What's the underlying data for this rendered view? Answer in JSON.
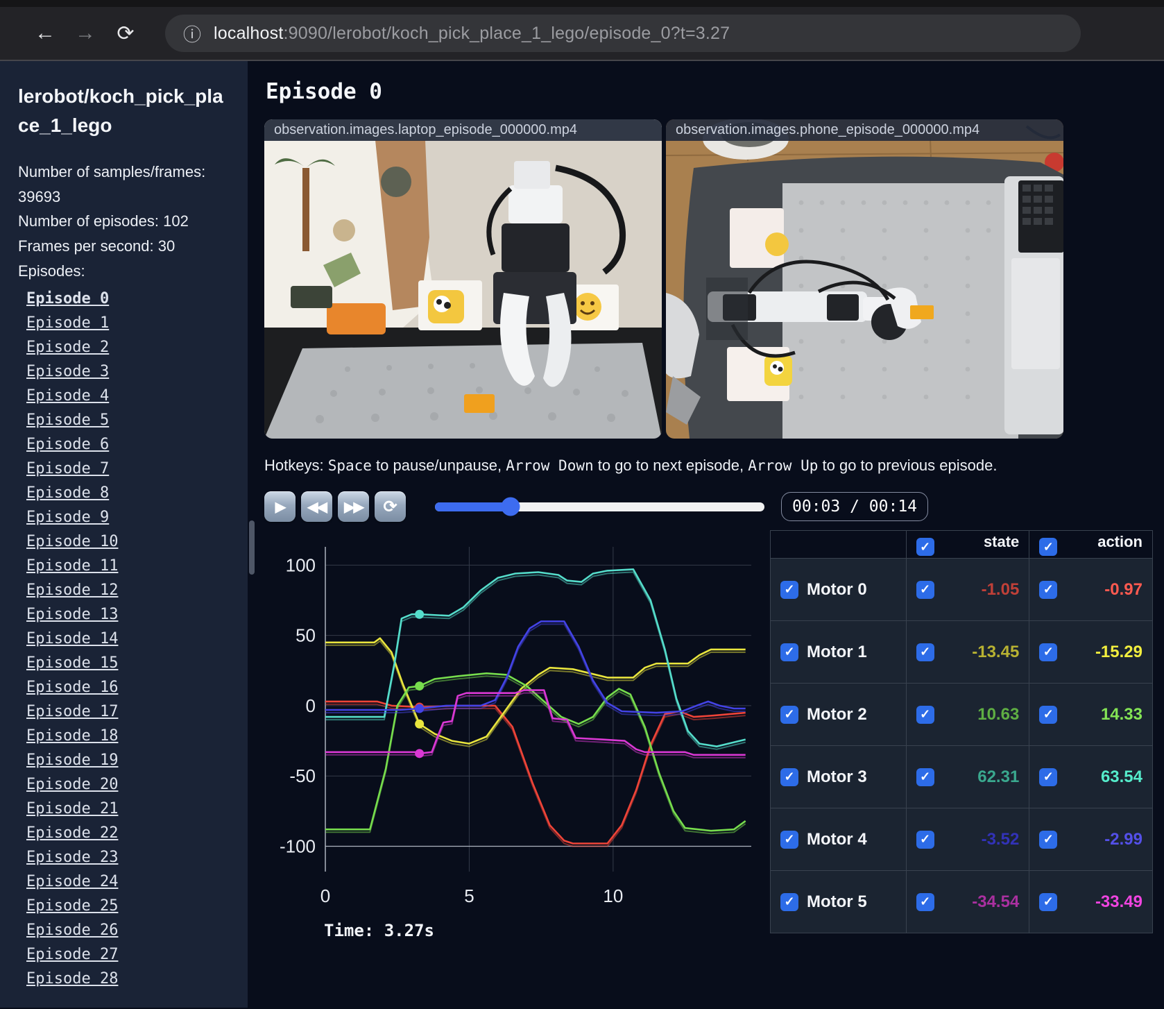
{
  "browser": {
    "back_icon": "←",
    "forward_icon": "→",
    "reload_icon": "⟳",
    "info_icon": "ⓘ",
    "url_host": "localhost",
    "url_rest": ":9090/lerobot/koch_pick_place_1_lego/episode_0?t=3.27"
  },
  "sidebar": {
    "title": "lerobot/koch_pick_place_1_lego",
    "meta_line1": "Number of samples/frames: 39693",
    "meta_line2": "Number of episodes: 102",
    "meta_line3": "Frames per second: 30",
    "episodes_label": "Episodes:",
    "active_episode": "Episode 0",
    "episodes": [
      "Episode 0",
      "Episode 1",
      "Episode 2",
      "Episode 3",
      "Episode 4",
      "Episode 5",
      "Episode 6",
      "Episode 7",
      "Episode 8",
      "Episode 9",
      "Episode 10",
      "Episode 11",
      "Episode 12",
      "Episode 13",
      "Episode 14",
      "Episode 15",
      "Episode 16",
      "Episode 17",
      "Episode 18",
      "Episode 19",
      "Episode 20",
      "Episode 21",
      "Episode 22",
      "Episode 23",
      "Episode 24",
      "Episode 25",
      "Episode 26",
      "Episode 27",
      "Episode 28"
    ]
  },
  "main": {
    "heading": "Episode 0",
    "videos": [
      {
        "title": "observation.images.laptop_episode_000000.mp4"
      },
      {
        "title": "observation.images.phone_episode_000000.mp4"
      }
    ],
    "hotkeys": {
      "prefix": "Hotkeys: ",
      "key1": "Space",
      "mid1": " to pause/unpause, ",
      "key2": "Arrow Down",
      "mid2": " to go to next episode, ",
      "key3": "Arrow Up",
      "suffix": " to go to previous episode."
    },
    "controls": {
      "play_icon": "▶",
      "rewind_icon": "◀◀",
      "forward_icon": "▶▶",
      "loop_icon": "⟳",
      "progress_pct": 23,
      "time_display": "00:03 / 00:14"
    }
  },
  "chart_data": {
    "type": "line",
    "title": "",
    "xlabel": "",
    "ylabel": "",
    "xlim": [
      0,
      14.8
    ],
    "ylim": [
      -118,
      113
    ],
    "x_ticks": [
      0,
      5,
      10
    ],
    "y_ticks": [
      100,
      50,
      0,
      -50,
      -100
    ],
    "grid": true,
    "legend_position": "none",
    "cursor_time": 3.27,
    "time_label": "Time: 3.27s",
    "series": [
      {
        "name": "Motor 0",
        "color": "#ef4438",
        "marker_y": -1,
        "points": [
          [
            0,
            3
          ],
          [
            1.8,
            3
          ],
          [
            2.3,
            0
          ],
          [
            3.27,
            -1
          ],
          [
            4.5,
            0
          ],
          [
            5.9,
            0
          ],
          [
            6.5,
            -15
          ],
          [
            7.2,
            -55
          ],
          [
            7.8,
            -85
          ],
          [
            8.3,
            -96
          ],
          [
            8.6,
            -98
          ],
          [
            9.8,
            -98
          ],
          [
            10.3,
            -85
          ],
          [
            10.8,
            -60
          ],
          [
            11.3,
            -28
          ],
          [
            11.8,
            -6
          ],
          [
            12.3,
            -4
          ],
          [
            12.8,
            -8
          ],
          [
            13.5,
            -7
          ],
          [
            14.6,
            -5
          ]
        ]
      },
      {
        "name": "Motor 1",
        "color": "#e9e53e",
        "marker_y": -13,
        "points": [
          [
            0,
            45
          ],
          [
            1.7,
            45
          ],
          [
            1.9,
            48
          ],
          [
            2.3,
            38
          ],
          [
            2.7,
            15
          ],
          [
            3.27,
            -13
          ],
          [
            3.8,
            -20
          ],
          [
            4.4,
            -25
          ],
          [
            5,
            -27
          ],
          [
            5.6,
            -22
          ],
          [
            6.2,
            -5
          ],
          [
            6.8,
            12
          ],
          [
            7.4,
            22
          ],
          [
            7.8,
            27
          ],
          [
            8.6,
            26
          ],
          [
            9.2,
            23
          ],
          [
            9.8,
            20
          ],
          [
            10.7,
            20
          ],
          [
            11.1,
            27
          ],
          [
            11.5,
            30
          ],
          [
            12.6,
            30
          ],
          [
            13,
            36
          ],
          [
            13.4,
            40
          ],
          [
            14.6,
            40
          ]
        ]
      },
      {
        "name": "Motor 2",
        "color": "#77dd4d",
        "marker_y": 14,
        "points": [
          [
            0,
            -88
          ],
          [
            1.55,
            -88
          ],
          [
            2.1,
            -45
          ],
          [
            2.5,
            0
          ],
          [
            2.9,
            13
          ],
          [
            3.27,
            14
          ],
          [
            3.8,
            19
          ],
          [
            4.6,
            21
          ],
          [
            5.6,
            23
          ],
          [
            6.3,
            22
          ],
          [
            7,
            14
          ],
          [
            7.6,
            3
          ],
          [
            8.2,
            -8
          ],
          [
            8.8,
            -13
          ],
          [
            9.3,
            -8
          ],
          [
            9.8,
            6
          ],
          [
            10.2,
            12
          ],
          [
            10.6,
            8
          ],
          [
            11.1,
            -15
          ],
          [
            11.6,
            -48
          ],
          [
            12.1,
            -75
          ],
          [
            12.5,
            -87
          ],
          [
            13.4,
            -89
          ],
          [
            14.2,
            -88
          ],
          [
            14.6,
            -82
          ]
        ]
      },
      {
        "name": "Motor 3",
        "color": "#55ddcb",
        "marker_y": 65,
        "points": [
          [
            0,
            -8
          ],
          [
            2.05,
            -8
          ],
          [
            2.4,
            30
          ],
          [
            2.65,
            62
          ],
          [
            3,
            65
          ],
          [
            3.27,
            65
          ],
          [
            4.3,
            64
          ],
          [
            4.8,
            70
          ],
          [
            5.4,
            82
          ],
          [
            6,
            91
          ],
          [
            6.6,
            94
          ],
          [
            7.4,
            95
          ],
          [
            8.1,
            93
          ],
          [
            8.4,
            89
          ],
          [
            8.9,
            88
          ],
          [
            9.3,
            94
          ],
          [
            9.8,
            96
          ],
          [
            10.7,
            97
          ],
          [
            11.3,
            75
          ],
          [
            11.8,
            40
          ],
          [
            12.2,
            5
          ],
          [
            12.6,
            -18
          ],
          [
            13,
            -27
          ],
          [
            13.6,
            -29
          ],
          [
            14.2,
            -26
          ],
          [
            14.6,
            -24
          ]
        ]
      },
      {
        "name": "Motor 4",
        "color": "#4343e6",
        "marker_y": -2,
        "points": [
          [
            0,
            -3
          ],
          [
            2.6,
            -3
          ],
          [
            3.27,
            -2
          ],
          [
            4.2,
            0
          ],
          [
            5.4,
            0
          ],
          [
            5.9,
            4
          ],
          [
            6.3,
            20
          ],
          [
            6.7,
            42
          ],
          [
            7.1,
            55
          ],
          [
            7.5,
            60
          ],
          [
            8.3,
            60
          ],
          [
            8.8,
            42
          ],
          [
            9.3,
            18
          ],
          [
            9.8,
            2
          ],
          [
            10.3,
            -4
          ],
          [
            11.5,
            -5
          ],
          [
            12.4,
            -4
          ],
          [
            12.9,
            0
          ],
          [
            13.3,
            3
          ],
          [
            13.7,
            0
          ],
          [
            14.2,
            -2
          ],
          [
            14.6,
            -2
          ]
        ]
      },
      {
        "name": "Motor 5",
        "color": "#da38d4",
        "marker_y": -34,
        "points": [
          [
            0,
            -33
          ],
          [
            3.1,
            -33
          ],
          [
            3.27,
            -34
          ],
          [
            3.7,
            -33
          ],
          [
            3.9,
            -22
          ],
          [
            4.1,
            -12
          ],
          [
            4.4,
            -11
          ],
          [
            4.6,
            7
          ],
          [
            4.9,
            9
          ],
          [
            6.6,
            9
          ],
          [
            6.9,
            11
          ],
          [
            7.6,
            11
          ],
          [
            7.9,
            -9
          ],
          [
            8.4,
            -10
          ],
          [
            8.7,
            -23
          ],
          [
            9.6,
            -24
          ],
          [
            10.4,
            -25
          ],
          [
            10.8,
            -31
          ],
          [
            11.1,
            -33
          ],
          [
            12.5,
            -33
          ],
          [
            12.8,
            -35
          ],
          [
            14.6,
            -35
          ]
        ]
      }
    ]
  },
  "table": {
    "col_state": "state",
    "col_action": "action",
    "rows": [
      {
        "name": "Motor 0",
        "state": "-1.05",
        "action": "-0.97",
        "state_color": "#c04038",
        "action_color": "#ff5a50"
      },
      {
        "name": "Motor 1",
        "state": "-13.45",
        "action": "-15.29",
        "state_color": "#b8b232",
        "action_color": "#f2ee3e"
      },
      {
        "name": "Motor 2",
        "state": "10.63",
        "action": "14.33",
        "state_color": "#5fae43",
        "action_color": "#84e455"
      },
      {
        "name": "Motor 3",
        "state": "62.31",
        "action": "63.54",
        "state_color": "#3aa88e",
        "action_color": "#55eccb"
      },
      {
        "name": "Motor 4",
        "state": "-3.52",
        "action": "-2.99",
        "state_color": "#3232b8",
        "action_color": "#5450e8"
      },
      {
        "name": "Motor 5",
        "state": "-34.54",
        "action": "-33.49",
        "state_color": "#aa30a0",
        "action_color": "#f044e0"
      }
    ]
  }
}
